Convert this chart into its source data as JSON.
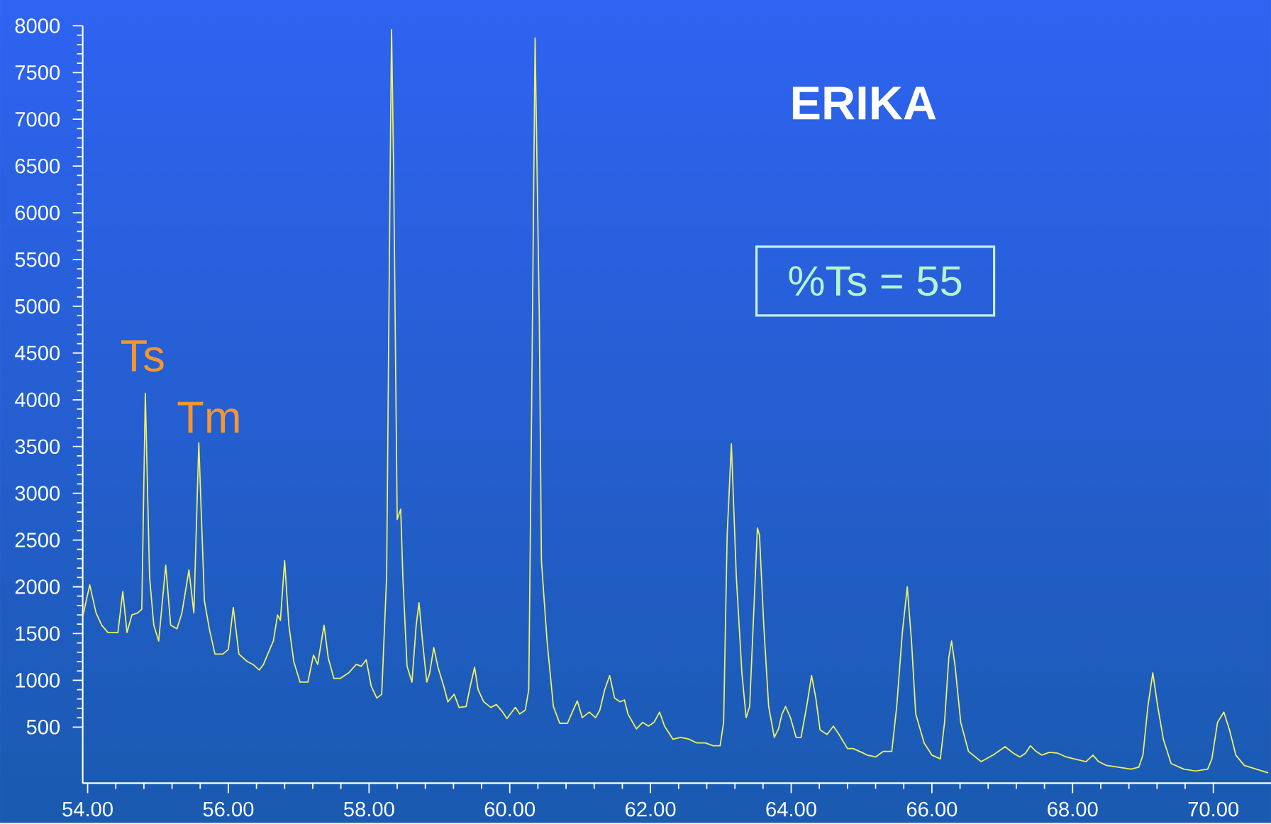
{
  "chart_data": {
    "type": "line",
    "title": "ERIKA",
    "color": "#f2f25a",
    "xlim": [
      53.93,
      70.82
    ],
    "ylim": [
      -100,
      8000
    ],
    "xticks": [
      {
        "value": 54,
        "label": "54.00"
      },
      {
        "value": 56,
        "label": "56.00"
      },
      {
        "value": 58,
        "label": "58.00"
      },
      {
        "value": 60,
        "label": "60.00"
      },
      {
        "value": 62,
        "label": "62.00"
      },
      {
        "value": 64,
        "label": "64.00"
      },
      {
        "value": 66,
        "label": "66.00"
      },
      {
        "value": 68,
        "label": "68.00"
      },
      {
        "value": 70,
        "label": "70.00"
      }
    ],
    "yticks": [
      500,
      1000,
      1500,
      2000,
      2500,
      3000,
      3500,
      4000,
      4500,
      5000,
      5500,
      6000,
      6500,
      7000,
      7500,
      8000
    ],
    "annotations": [
      "Ts",
      "Tm",
      "%Ts = 55"
    ],
    "x": [
      53.93,
      54.03,
      54.12,
      54.2,
      54.29,
      54.37,
      54.43,
      54.5,
      54.56,
      54.63,
      54.71,
      54.77,
      54.82,
      54.88,
      54.94,
      55.01,
      55.11,
      55.18,
      55.27,
      55.34,
      55.44,
      55.51,
      55.58,
      55.66,
      55.73,
      55.81,
      55.92,
      56.0,
      56.07,
      56.15,
      56.27,
      56.35,
      56.44,
      56.5,
      56.56,
      56.64,
      56.7,
      56.74,
      56.8,
      56.86,
      56.93,
      57.02,
      57.13,
      57.21,
      57.27,
      57.36,
      57.42,
      57.5,
      57.59,
      57.71,
      57.82,
      57.89,
      57.96,
      58.03,
      58.11,
      58.18,
      58.25,
      58.3,
      58.32,
      58.35,
      58.4,
      58.45,
      58.48,
      58.54,
      58.61,
      58.67,
      58.71,
      58.76,
      58.82,
      58.86,
      58.92,
      58.98,
      59.06,
      59.12,
      59.21,
      59.28,
      59.38,
      59.44,
      59.5,
      59.55,
      59.63,
      59.73,
      59.81,
      59.9,
      59.96,
      60.01,
      60.08,
      60.14,
      60.22,
      60.27,
      60.31,
      60.36,
      60.42,
      60.45,
      60.53,
      60.62,
      60.71,
      60.82,
      60.9,
      60.96,
      61.03,
      61.13,
      61.22,
      61.28,
      61.35,
      61.42,
      61.49,
      61.57,
      61.63,
      61.68,
      61.8,
      61.89,
      61.97,
      62.05,
      62.13,
      62.2,
      62.32,
      62.43,
      62.55,
      62.66,
      62.78,
      62.89,
      62.99,
      63.04,
      63.09,
      63.15,
      63.22,
      63.3,
      63.36,
      63.41,
      63.46,
      63.52,
      63.55,
      63.61,
      63.68,
      63.76,
      63.82,
      63.87,
      63.92,
      63.99,
      64.07,
      64.14,
      64.22,
      64.29,
      64.35,
      64.41,
      64.51,
      64.6,
      64.68,
      64.8,
      64.88,
      65.0,
      65.08,
      65.2,
      65.31,
      65.43,
      65.5,
      65.58,
      65.65,
      65.71,
      65.77,
      65.89,
      66.0,
      66.12,
      66.18,
      66.24,
      66.28,
      66.33,
      66.41,
      66.52,
      66.7,
      66.87,
      67.04,
      67.16,
      67.25,
      67.33,
      67.4,
      67.48,
      67.56,
      67.67,
      67.79,
      67.91,
      68.02,
      68.19,
      68.29,
      68.37,
      68.48,
      68.65,
      68.83,
      68.94,
      69.0,
      69.07,
      69.14,
      69.21,
      69.29,
      69.4,
      69.58,
      69.75,
      69.92,
      69.98,
      70.06,
      70.15,
      70.23,
      70.32,
      70.44,
      70.61,
      70.78
    ],
    "values": [
      1680,
      2020,
      1720,
      1590,
      1510,
      1510,
      1510,
      1950,
      1510,
      1700,
      1720,
      1760,
      4070,
      2110,
      1590,
      1420,
      2230,
      1590,
      1550,
      1720,
      2180,
      1720,
      3540,
      1850,
      1550,
      1280,
      1280,
      1330,
      1780,
      1280,
      1200,
      1170,
      1110,
      1170,
      1280,
      1420,
      1700,
      1640,
      2280,
      1590,
      1200,
      980,
      980,
      1270,
      1170,
      1590,
      1240,
      1020,
      1020,
      1080,
      1170,
      1150,
      1220,
      940,
      810,
      850,
      2110,
      6430,
      7960,
      6430,
      2720,
      2830,
      2110,
      1150,
      980,
      1590,
      1830,
      1420,
      980,
      1070,
      1350,
      1140,
      940,
      770,
      850,
      710,
      720,
      940,
      1140,
      900,
      770,
      710,
      740,
      660,
      590,
      640,
      710,
      640,
      680,
      900,
      3840,
      7870,
      4880,
      2280,
      1420,
      720,
      540,
      540,
      680,
      780,
      600,
      660,
      600,
      680,
      900,
      1050,
      810,
      770,
      790,
      640,
      480,
      550,
      510,
      550,
      660,
      510,
      370,
      390,
      370,
      330,
      330,
      300,
      300,
      550,
      2550,
      3530,
      2110,
      1070,
      600,
      720,
      1590,
      2630,
      2550,
      1590,
      720,
      390,
      480,
      640,
      720,
      600,
      390,
      390,
      720,
      1050,
      810,
      470,
      420,
      510,
      420,
      270,
      270,
      230,
      200,
      180,
      240,
      240,
      720,
      1510,
      2000,
      1420,
      640,
      330,
      200,
      160,
      550,
      1240,
      1420,
      1150,
      550,
      240,
      130,
      200,
      290,
      220,
      180,
      220,
      300,
      240,
      200,
      230,
      220,
      180,
      160,
      130,
      200,
      130,
      90,
      70,
      50,
      70,
      200,
      720,
      1080,
      720,
      370,
      110,
      50,
      30,
      50,
      160,
      550,
      660,
      470,
      200,
      90,
      50,
      10
    ]
  }
}
